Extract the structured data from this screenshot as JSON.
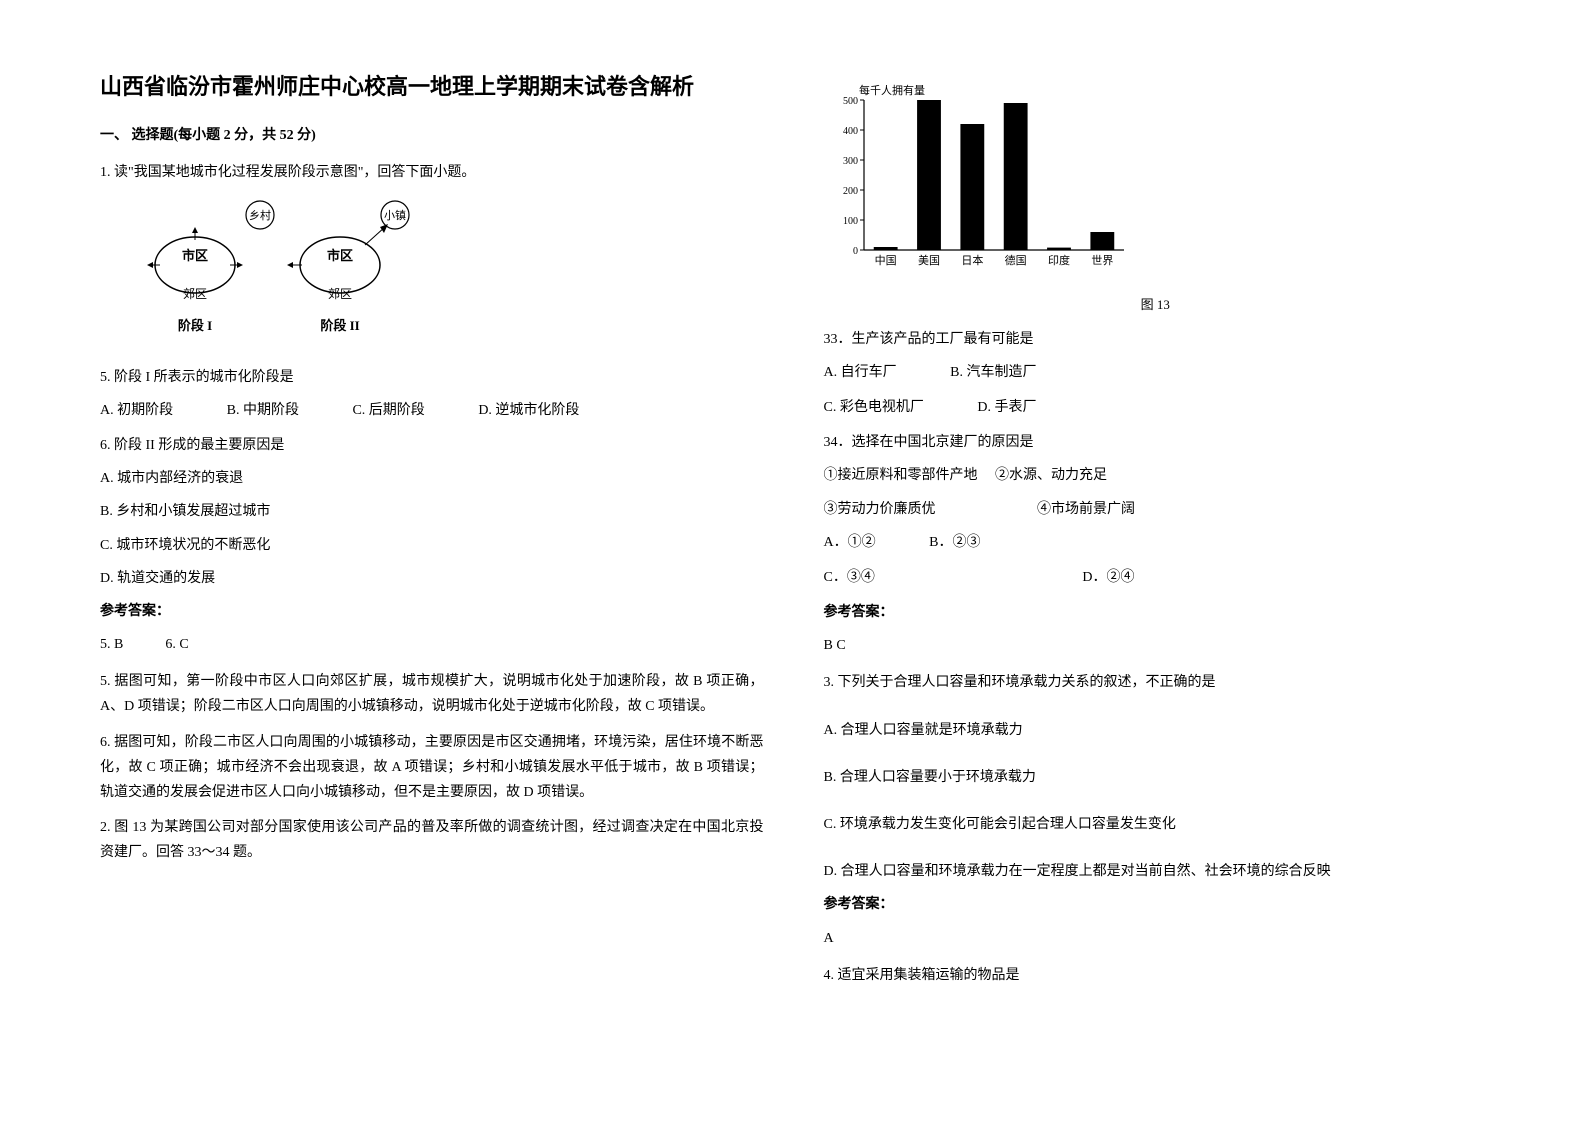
{
  "title": "山西省临汾市霍州师庄中心校高一地理上学期期末试卷含解析",
  "section1": "一、 选择题(每小题 2 分，共 52 分)",
  "q1_intro": "1. 读\"我国某地城市化过程发展阶段示意图\"，回答下面小题。",
  "diagram1": {
    "labels": {
      "village": "乡村",
      "town": "小镇",
      "city": "市区",
      "suburb": "郊区",
      "stage1": "阶段 I",
      "stage2": "阶段 II"
    }
  },
  "q5_text": "5. 阶段 I 所表示的城市化阶段是",
  "q5_options": {
    "a": "A. 初期阶段",
    "b": "B. 中期阶段",
    "c": "C. 后期阶段",
    "d": "D. 逆城市化阶段"
  },
  "q6_text": "6. 阶段 II 形成的最主要原因是",
  "q6_options": {
    "a": "A. 城市内部经济的衰退",
    "b": "B. 乡村和小镇发展超过城市",
    "c": "C. 城市环境状况的不断恶化",
    "d": "D. 轨道交通的发展"
  },
  "answer_label": "参考答案：",
  "q1_answer": "5. B　　　6. C",
  "q5_explanation": "5. 据图可知，第一阶段中市区人口向郊区扩展，城市规模扩大，说明城市化处于加速阶段，故 B 项正确，A、D 项错误；阶段二市区人口向周围的小城镇移动，说明城市化处于逆城市化阶段，故 C 项错误。",
  "q6_explanation": "6. 据图可知，阶段二市区人口向周围的小城镇移动，主要原因是市区交通拥堵，环境污染，居住环境不断恶化，故 C 项正确；城市经济不会出现衰退，故 A 项错误；乡村和小城镇发展水平低于城市，故 B 项错误；轨道交通的发展会促进市区人口向小城镇移动，但不是主要原因，故 D 项错误。",
  "q2_intro": "2. 图 13 为某跨国公司对部分国家使用该公司产品的普及率所做的调查统计图，经过调查决定在中国北京投资建厂。回答 33～34 题。",
  "chart": {
    "ylabel": "每千人拥有量",
    "ymax": 500,
    "ytick_step": 100,
    "categories": [
      "中国",
      "美国",
      "日本",
      "德国",
      "印度",
      "世界"
    ],
    "values": [
      10,
      500,
      420,
      490,
      8,
      60
    ],
    "bar_color": "#000000",
    "background": "#ffffff",
    "caption": "图 13"
  },
  "q33_text": "33．生产该产品的工厂最有可能是",
  "q33_options": {
    "a": "A. 自行车厂",
    "b": "B. 汽车制造厂",
    "c": "C. 彩色电视机厂",
    "d": "D. 手表厂"
  },
  "q34_text": "34．选择在中国北京建厂的原因是",
  "q34_conditions": {
    "c1": "①接近原料和零部件产地",
    "c2": "②水源、动力充足",
    "c3": "③劳动力价廉质优",
    "c4": "④市场前景广阔"
  },
  "q34_options": {
    "a": "A．①②",
    "b": "B．②③",
    "c": "C．③④",
    "d": "D．②④"
  },
  "q2_answer": "B C",
  "q3_text": "3. 下列关于合理人口容量和环境承载力关系的叙述，不正确的是",
  "q3_options": {
    "a": "A. 合理人口容量就是环境承载力",
    "b": "B. 合理人口容量要小于环境承载力",
    "c": "C. 环境承载力发生变化可能会引起合理人口容量发生变化",
    "d": "D. 合理人口容量和环境承载力在一定程度上都是对当前自然、社会环境的综合反映"
  },
  "q3_answer": "A",
  "q4_text": "4. 适宜采用集装箱运输的物品是"
}
